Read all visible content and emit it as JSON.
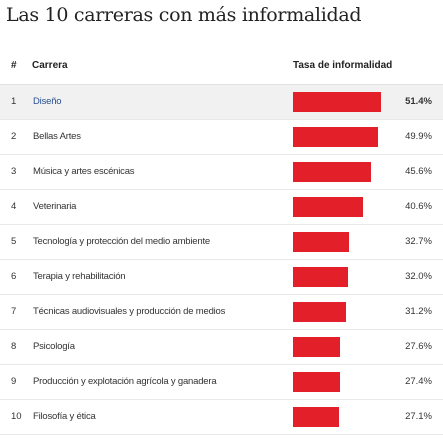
{
  "title": "Las 10 carreras con más informalidad",
  "headers": {
    "num": "#",
    "career": "Carrera",
    "rate": "Tasa de informalidad"
  },
  "chart_data": {
    "type": "bar",
    "orientation": "horizontal",
    "bar_color": "#e3202a",
    "highlight_row_background": "#f1f1f1",
    "highlight_text_color": "#2a4f8f",
    "highlighted_row": 1,
    "xlim": [
      0,
      51.4
    ],
    "rows": [
      {
        "rank": "1",
        "career": "Diseño",
        "value": 51.4,
        "label": "51.4%"
      },
      {
        "rank": "2",
        "career": "Bellas Artes",
        "value": 49.9,
        "label": "49.9%"
      },
      {
        "rank": "3",
        "career": "Música y artes escénicas",
        "value": 45.6,
        "label": "45.6%"
      },
      {
        "rank": "4",
        "career": "Veterinaria",
        "value": 40.6,
        "label": "40.6%"
      },
      {
        "rank": "5",
        "career": "Tecnología y protección del medio ambiente",
        "value": 32.7,
        "label": "32.7%"
      },
      {
        "rank": "6",
        "career": "Terapia y rehabilitación",
        "value": 32.0,
        "label": "32.0%"
      },
      {
        "rank": "7",
        "career": "Técnicas audiovisuales y producción de medios",
        "value": 31.2,
        "label": "31.2%"
      },
      {
        "rank": "8",
        "career": "Psicología",
        "value": 27.6,
        "label": "27.6%"
      },
      {
        "rank": "9",
        "career": "Producción y explotación agrícola y ganadera",
        "value": 27.4,
        "label": "27.4%"
      },
      {
        "rank": "10",
        "career": "Filosofía y ética",
        "value": 27.1,
        "label": "27.1%"
      }
    ]
  }
}
